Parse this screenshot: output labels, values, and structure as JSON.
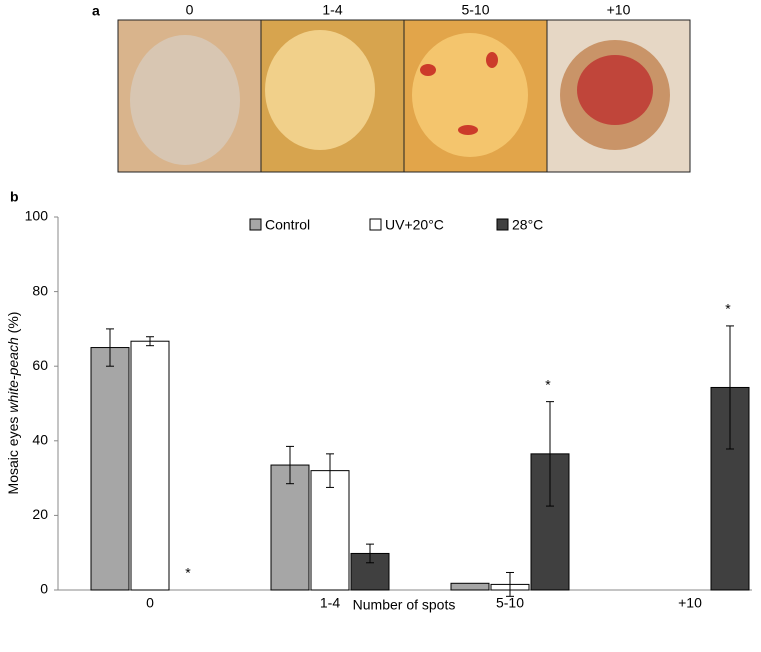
{
  "panel_a": {
    "letter": "a",
    "labels": [
      "0",
      "1-4",
      "5-10",
      "+10"
    ]
  },
  "chart_data": {
    "type": "bar",
    "letter": "b",
    "categories": [
      "0",
      "1-4",
      "5-10",
      "+10"
    ],
    "x_label": "Number of spots",
    "y_label": [
      "Mosaic eyes ",
      "white-peach",
      " (%)"
    ],
    "ylim": [
      0,
      100
    ],
    "yticks": [
      0,
      20,
      40,
      60,
      80,
      100
    ],
    "series": [
      {
        "name": "Control",
        "color": "#a6a6a6",
        "values": [
          65,
          33.5,
          1.8,
          0
        ],
        "errors": [
          5,
          5,
          null,
          null
        ]
      },
      {
        "name": "UV+20°C",
        "color": "#ffffff",
        "values": [
          66.7,
          32,
          1.5,
          0
        ],
        "errors": [
          1.2,
          4.5,
          3.2,
          null
        ]
      },
      {
        "name": "28°C",
        "color": "#404040",
        "values": [
          0,
          9.8,
          36.5,
          54.3
        ],
        "errors": [
          null,
          2.5,
          14,
          16.5
        ],
        "significance": [
          "*",
          null,
          "*",
          "*"
        ]
      }
    ]
  }
}
